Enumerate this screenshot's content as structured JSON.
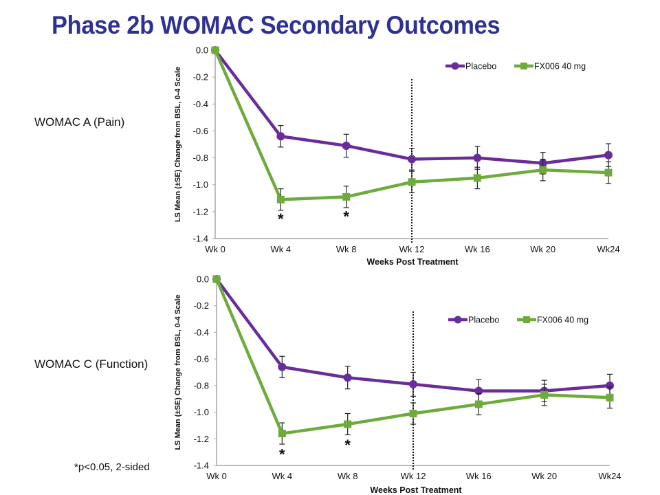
{
  "slide": {
    "title": "Phase 2b WOMAC Secondary Outcomes",
    "footnote": "*p<0.05, 2-sided"
  },
  "chart_data": [
    {
      "type": "line",
      "side_label": "WOMAC A (Pain)",
      "title": "",
      "xlabel": "Weeks Post Treatment",
      "ylabel": "LS Mean (±SE)  Change from BSL, 0-4 Scale",
      "categories": [
        "Wk 0",
        "Wk 4",
        "Wk 8",
        "Wk 12",
        "Wk 16",
        "Wk 20",
        "Wk24"
      ],
      "ylim": [
        -1.4,
        0.0
      ],
      "yticks": [
        "0.0",
        "-0.2",
        "-0.4",
        "-0.6",
        "-0.8",
        "-1.0",
        "-1.2",
        "-1.4"
      ],
      "legend_position": "top-right",
      "reference_line": {
        "at": "Wk 12",
        "style": "dotted"
      },
      "series": [
        {
          "name": "Placebo",
          "marker": "circle",
          "color": "#6A2C9A",
          "values": [
            0.0,
            -0.64,
            -0.71,
            -0.81,
            -0.8,
            -0.84,
            -0.78
          ],
          "se": [
            0.0,
            0.08,
            0.085,
            0.08,
            0.085,
            0.08,
            0.085
          ]
        },
        {
          "name": "FX006 40 mg",
          "marker": "square",
          "color": "#6EAB3C",
          "values": [
            0.0,
            -1.11,
            -1.09,
            -0.98,
            -0.95,
            -0.89,
            -0.91
          ],
          "se": [
            0.0,
            0.08,
            0.08,
            0.08,
            0.08,
            0.08,
            0.08
          ]
        }
      ],
      "annotations": [
        {
          "text": "*",
          "at": "Wk 4"
        },
        {
          "text": "*",
          "at": "Wk 8"
        }
      ]
    },
    {
      "type": "line",
      "side_label": "WOMAC C (Function)",
      "title": "",
      "xlabel": "Weeks Post Treatment",
      "ylabel": "LS Mean (±SE) Change from BSL,  0-4 Scale",
      "categories": [
        "Wk 0",
        "Wk 4",
        "Wk 8",
        "Wk 12",
        "Wk 16",
        "Wk 20",
        "Wk24"
      ],
      "ylim": [
        -1.4,
        0.0
      ],
      "yticks": [
        "0.0",
        "-0.2",
        "-0.4",
        "-0.6",
        "-0.8",
        "-1.0",
        "-1.2",
        "-1.4"
      ],
      "legend_position": "top-right",
      "reference_line": {
        "at": "Wk 12",
        "style": "dotted"
      },
      "series": [
        {
          "name": "Placebo",
          "marker": "circle",
          "color": "#6A2C9A",
          "values": [
            0.0,
            -0.66,
            -0.74,
            -0.79,
            -0.84,
            -0.84,
            -0.8
          ],
          "se": [
            0.0,
            0.08,
            0.085,
            0.09,
            0.085,
            0.08,
            0.085
          ]
        },
        {
          "name": "FX006 40 mg",
          "marker": "square",
          "color": "#6EAB3C",
          "values": [
            0.0,
            -1.16,
            -1.09,
            -1.01,
            -0.94,
            -0.87,
            -0.89
          ],
          "se": [
            0.0,
            0.08,
            0.08,
            0.08,
            0.08,
            0.08,
            0.08
          ]
        }
      ],
      "annotations": [
        {
          "text": "*",
          "at": "Wk 4"
        },
        {
          "text": "*",
          "at": "Wk 8"
        }
      ]
    }
  ]
}
